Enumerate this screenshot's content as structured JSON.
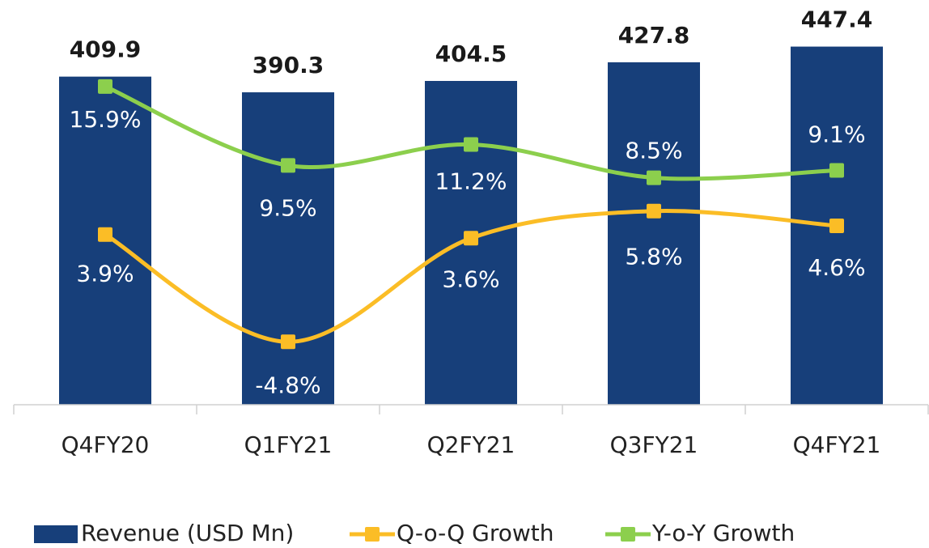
{
  "chart_data": {
    "type": "bar-line",
    "categories": [
      "Q4FY20",
      "Q1FY21",
      "Q2FY21",
      "Q3FY21",
      "Q4FY21"
    ],
    "series": [
      {
        "name": "Revenue (USD Mn)",
        "type": "bar",
        "color": "#173f7a",
        "values": [
          409.9,
          390.3,
          404.5,
          427.8,
          447.4
        ]
      },
      {
        "name": "Q-o-Q Growth",
        "type": "line",
        "axis": "y2",
        "color": "#fbbd26",
        "values": [
          3.9,
          -4.8,
          3.6,
          5.8,
          4.6
        ],
        "value_labels": [
          "3.9%",
          "-4.8%",
          "3.6%",
          "5.8%",
          "4.6%"
        ]
      },
      {
        "name": "Y-o-Y Growth",
        "type": "line",
        "axis": "y2",
        "color": "#8ccf4d",
        "values": [
          15.9,
          9.5,
          11.2,
          8.5,
          9.1
        ],
        "value_labels": [
          "15.9%",
          "9.5%",
          "11.2%",
          "8.5%",
          "9.1%"
        ]
      }
    ],
    "ylim": [
      0,
      450
    ],
    "y2lim": [
      -9.9,
      19.3
    ],
    "grid": false,
    "legend": "bottom"
  }
}
